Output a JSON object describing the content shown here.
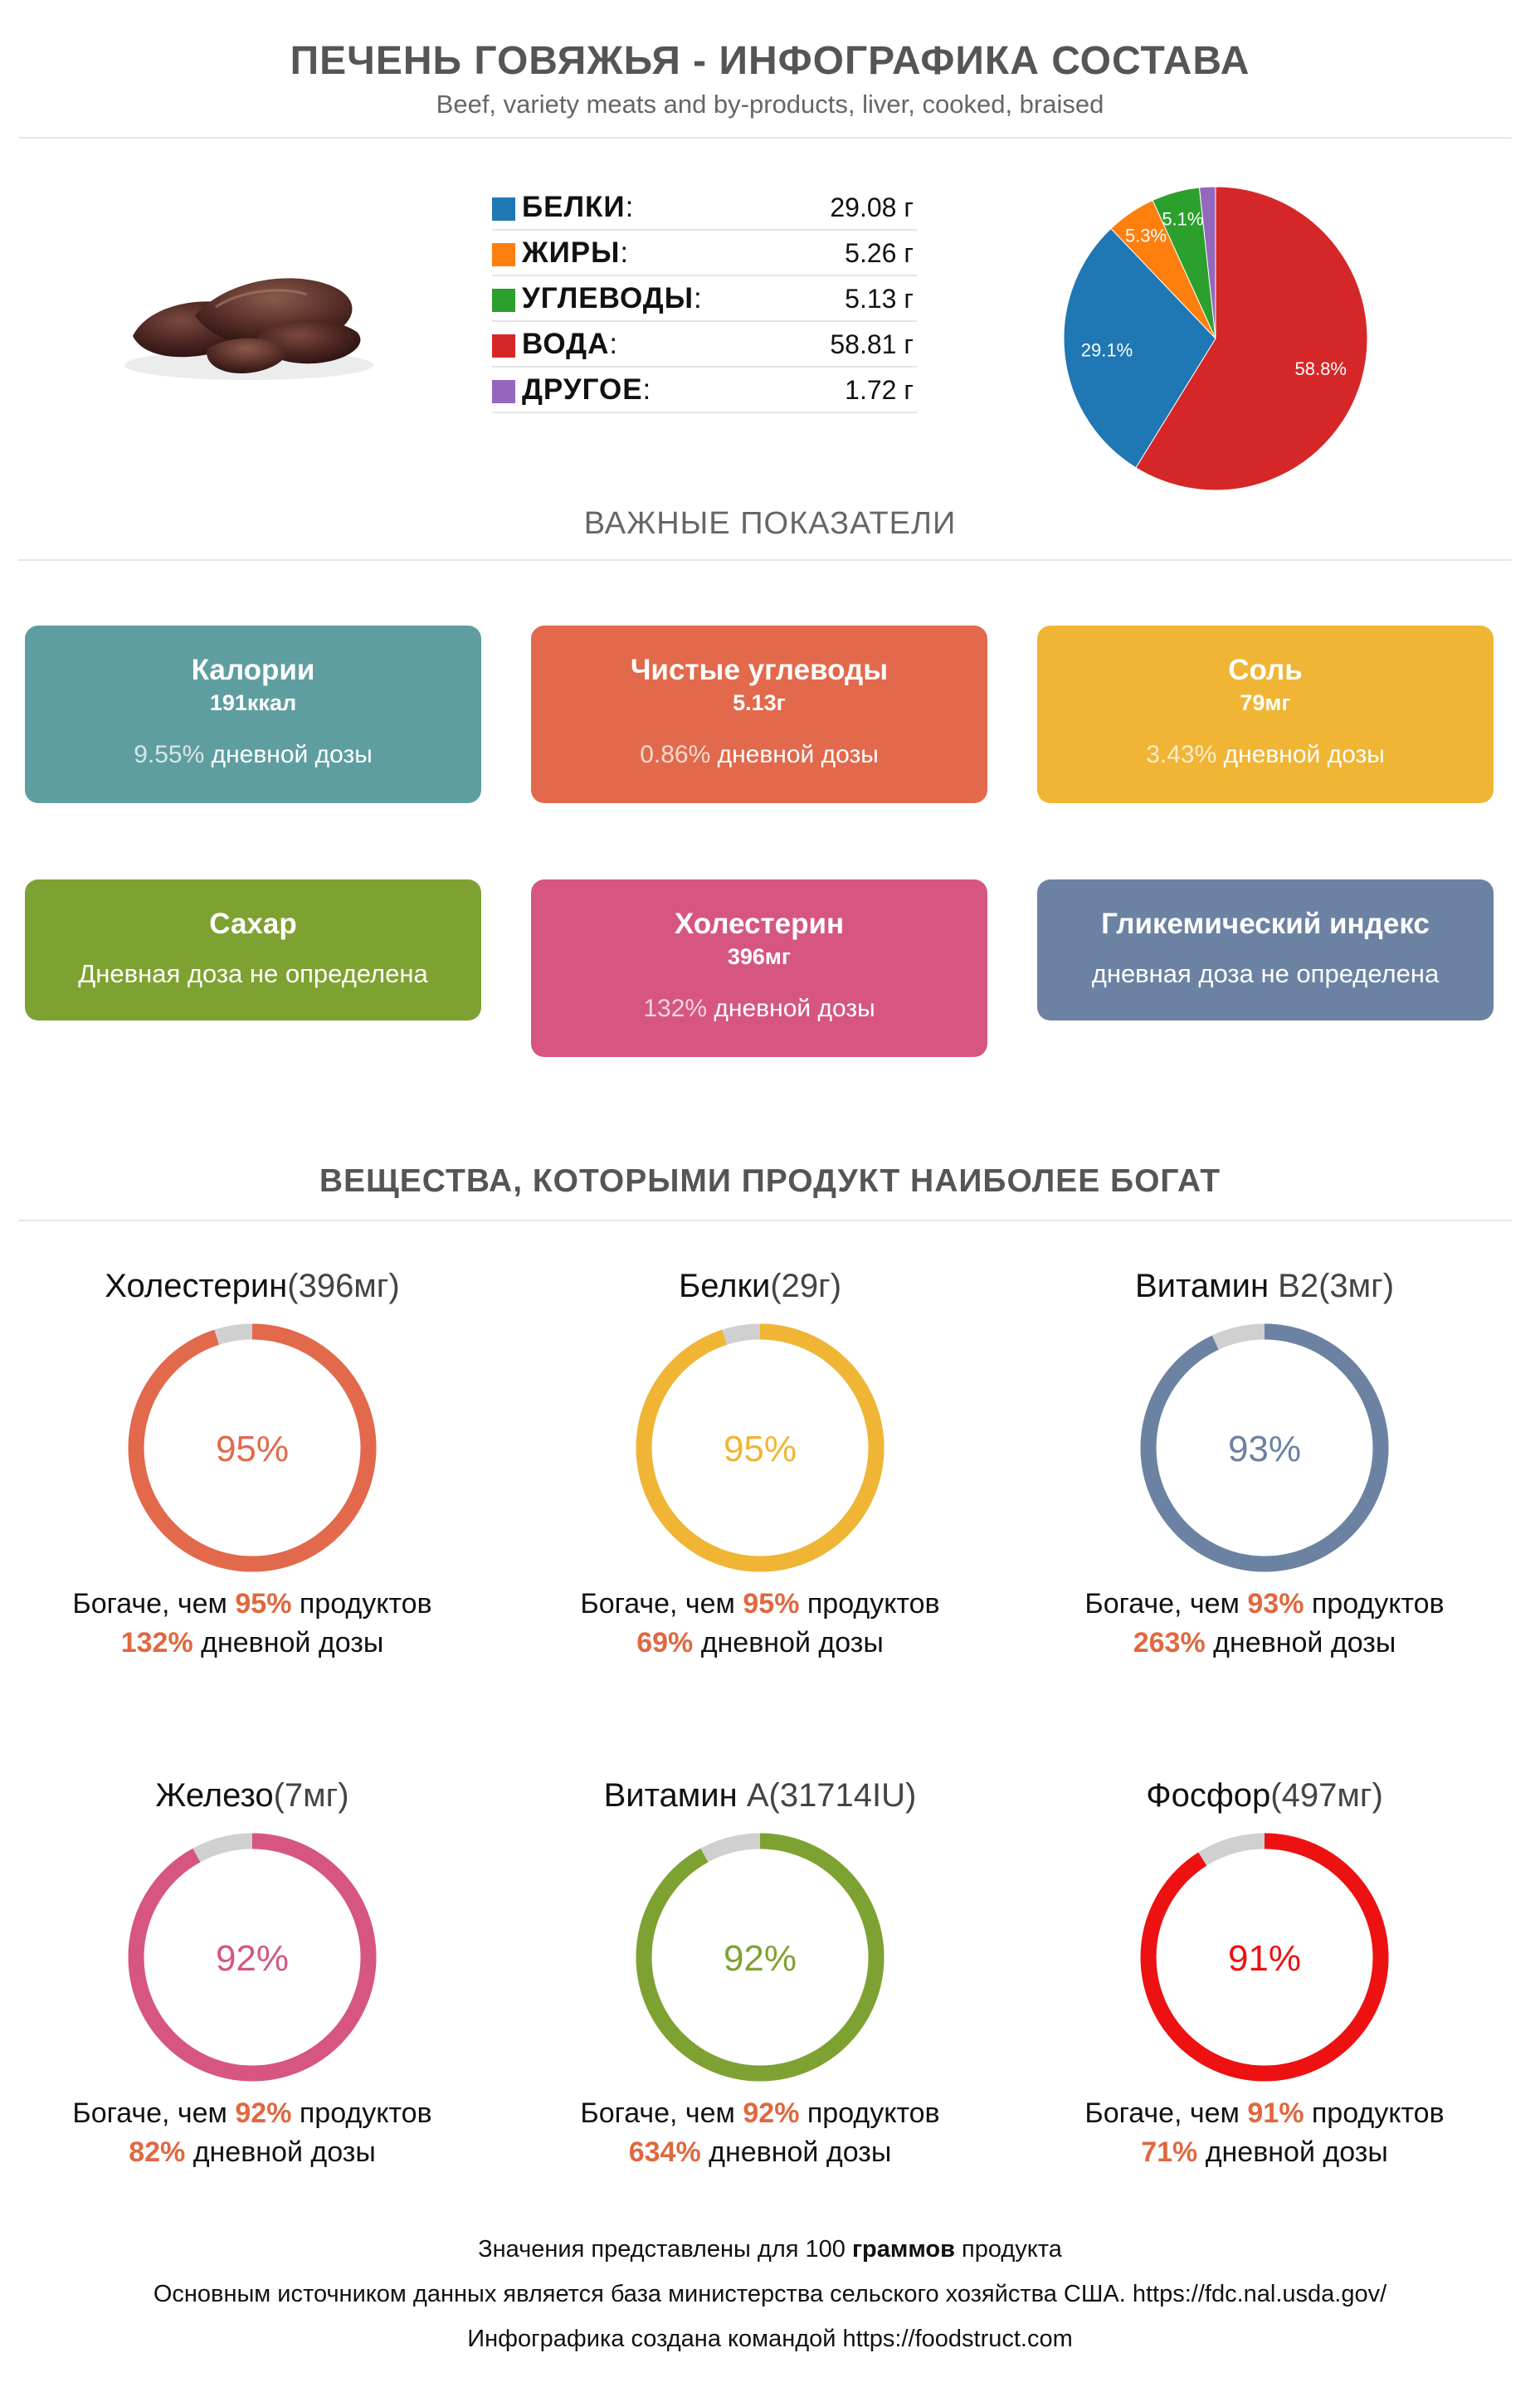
{
  "header": {
    "title": "ПЕЧЕНЬ ГОВЯЖЬЯ - ИНФОГРАФИКА СОСТАВА",
    "subtitle": "Beef, variety meats and by-products, liver, cooked, braised"
  },
  "image": {
    "icon": "beef-liver-photo"
  },
  "macros": [
    {
      "label": "БЕЛКИ",
      "colon": ":",
      "value": "29.08 г",
      "color": "#1f77b4"
    },
    {
      "label": "ЖИРЫ",
      "colon": ":",
      "value": "5.26 г",
      "color": "#ff7f0e"
    },
    {
      "label": "УГЛЕВОДЫ",
      "colon": ":",
      "value": "5.13 г",
      "color": "#2ca02c"
    },
    {
      "label": "ВОДА",
      "colon": ":",
      "value": "58.81 г",
      "color": "#d62728"
    },
    {
      "label": "ДРУГОЕ",
      "colon": ":",
      "value": "1.72 г",
      "color": "#9467bd"
    }
  ],
  "chart_data": {
    "type": "pie",
    "categories": [
      "Белки",
      "Жиры",
      "Углеводы",
      "Вода",
      "Другое"
    ],
    "values": [
      29.1,
      5.3,
      5.1,
      58.8,
      1.7
    ],
    "labels": [
      "29.1%",
      "5.3%",
      "5.1%",
      "58.8%",
      ""
    ],
    "colors": [
      "#1f77b4",
      "#ff7f0e",
      "#2ca02c",
      "#d62728",
      "#9467bd"
    ]
  },
  "indicators": {
    "heading": "ВАЖНЫЕ ПОКАЗАТЕЛИ",
    "cards": [
      {
        "title": "Калории",
        "value": "191ккал",
        "pct": "9.55%",
        "note": " дневной дозы",
        "color": "#5f9ea0"
      },
      {
        "title": "Чистые углеводы",
        "value": "5.13г",
        "pct": "0.86%",
        "note": " дневной дозы",
        "color": "#e2694b"
      },
      {
        "title": "Соль",
        "value": "79мг",
        "pct": "3.43%",
        "note": " дневной дозы",
        "color": "#f0b534"
      },
      {
        "title": "Сахар",
        "nodose": "Дневная доза не определена",
        "color": "#7ea231"
      },
      {
        "title": "Холестерин",
        "value": "396мг",
        "pct": "132%",
        "note": " дневной дозы",
        "color": "#d65681"
      },
      {
        "title": "Гликемический индекс",
        "nodose": "дневная доза не определена",
        "color": "#6c82a3"
      }
    ]
  },
  "rich": {
    "heading": "ВЕЩЕСТВА, КОТОРЫМИ ПРОДУКТ НАИБОЛЕЕ БОГАТ",
    "richer_prefix": "Богаче, чем ",
    "richer_suffix": " продуктов",
    "dose_suffix": " дневной дозы",
    "items": [
      {
        "name": "Холестерин",
        "amount": "(396мг)",
        "percent": 95,
        "percent_label": "95%",
        "dose": "132%",
        "color": "#e2694b"
      },
      {
        "name": "Белки",
        "amount": "(29г)",
        "percent": 95,
        "percent_label": "95%",
        "dose": "69%",
        "color": "#f0b534"
      },
      {
        "name": "Витамин",
        "amount": " B2(3мг)",
        "percent": 93,
        "percent_label": "93%",
        "dose": "263%",
        "color": "#6c82a3"
      },
      {
        "name": "Железо",
        "amount": "(7мг)",
        "percent": 92,
        "percent_label": "92%",
        "dose": "82%",
        "color": "#d65681"
      },
      {
        "name": "Витамин",
        "amount": " A(31714IU)",
        "percent": 92,
        "percent_label": "92%",
        "dose": "634%",
        "color": "#7ea231"
      },
      {
        "name": "Фосфор",
        "amount": "(497мг)",
        "percent": 91,
        "percent_label": "91%",
        "dose": "71%",
        "color": "#ee1111"
      }
    ]
  },
  "footer": {
    "line1_a": "Значения представлены для 100 ",
    "line1_b": "граммов",
    "line1_c": " продукта",
    "line2": "Основным источником данных является база министерства сельского хозяйства США. https://fdc.nal.usda.gov/",
    "line3": "Инфографика создана командой https://foodstruct.com"
  }
}
